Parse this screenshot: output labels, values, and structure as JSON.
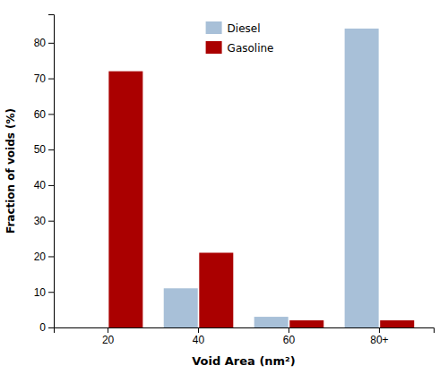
{
  "chart_data": {
    "type": "bar",
    "categories": [
      "20",
      "40",
      "60",
      "80+"
    ],
    "series": [
      {
        "name": "Diesel",
        "color": "#a8c0d8",
        "values": [
          0,
          11,
          3,
          84
        ]
      },
      {
        "name": "Gasoline",
        "color": "#aa0000",
        "values": [
          72,
          21,
          2,
          2
        ]
      }
    ],
    "xlabel": "Void Area (nm²)",
    "ylabel": "Fraction of voids (%)",
    "ylim": [
      0,
      88
    ],
    "yticks": [
      0,
      10,
      20,
      30,
      40,
      50,
      60,
      70,
      80
    ],
    "grid": false,
    "legend": "top"
  }
}
